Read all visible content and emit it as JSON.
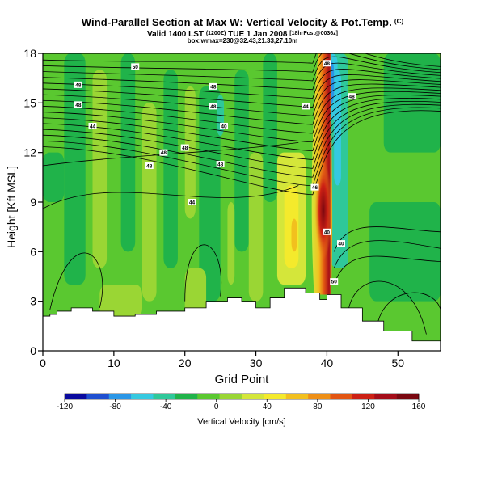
{
  "header": {
    "title": "Wind-Parallel Section at Max W: Vertical Velocity & Pot.Temp.",
    "title_mark": "(C)",
    "subtitle_main": "Valid 1400 LST",
    "subtitle_small1": "(1200Z)",
    "subtitle_date": "TUE 1 Jan 2008",
    "subtitle_small2": "[18hrFcst@0036z]",
    "subtitle2": "box:wmax=230@32.43,21.33,27.10m"
  },
  "chart_data": {
    "type": "heatmap",
    "xlabel": "Grid Point",
    "ylabel": "Height [Kft MSL]",
    "xlim": [
      0,
      56
    ],
    "ylim": [
      0,
      18
    ],
    "x_ticks": [
      0,
      10,
      20,
      30,
      40,
      50
    ],
    "y_ticks": [
      0,
      3,
      6,
      9,
      12,
      15,
      18
    ],
    "colorbar": {
      "label": "Vertical Velocity [cm/s]",
      "range": [
        -120,
        160
      ],
      "tick_labels": [
        "-120",
        "-80",
        "-40",
        "0",
        "40",
        "80",
        "120",
        "160"
      ],
      "colors": [
        "#0a0a9e",
        "#1f4fd0",
        "#2a96e6",
        "#35c9e0",
        "#2fc89a",
        "#20b34a",
        "#5ac830",
        "#9ad634",
        "#d4e63a",
        "#f4ea2c",
        "#f2c01e",
        "#ee8f16",
        "#e25512",
        "#cc2014",
        "#a40c18",
        "#7a0810"
      ]
    },
    "contour_labels": [
      "50",
      "48",
      "48",
      "48",
      "48",
      "48",
      "48",
      "48",
      "48",
      "48",
      "44",
      "44",
      "40",
      "48",
      "40",
      "44",
      "46",
      "40",
      "50"
    ],
    "terrain_height": [
      [
        0,
        2.1
      ],
      [
        1,
        2.2
      ],
      [
        2,
        2.4
      ],
      [
        4,
        2.6
      ],
      [
        7,
        2.4
      ],
      [
        10,
        2.1
      ],
      [
        13,
        2.2
      ],
      [
        16,
        2.4
      ],
      [
        20,
        2.6
      ],
      [
        23,
        3.0
      ],
      [
        26,
        3.2
      ],
      [
        28,
        3.0
      ],
      [
        30,
        2.6
      ],
      [
        32,
        3.2
      ],
      [
        34,
        3.8
      ],
      [
        37,
        3.5
      ],
      [
        39,
        3.1
      ],
      [
        40,
        3.4
      ],
      [
        42,
        2.6
      ],
      [
        45,
        1.8
      ],
      [
        48,
        1.2
      ],
      [
        52,
        0.6
      ],
      [
        56,
        0.5
      ]
    ],
    "updraft_max": {
      "x": 39.5,
      "y": 8.5,
      "value": 160
    }
  }
}
